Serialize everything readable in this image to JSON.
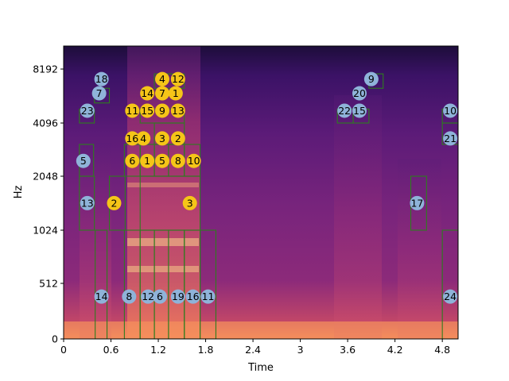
{
  "chart_data": {
    "type": "heatmap",
    "subtype": "spectrogram",
    "xlabel": "Time",
    "ylabel": "Hz",
    "xlim": [
      0,
      5.0
    ],
    "x_ticks": [
      0,
      0.6,
      1.2,
      1.8,
      2.4,
      3.0,
      3.6,
      4.2,
      4.8
    ],
    "x_tick_labels": [
      "0",
      "0.6",
      "1.2",
      "1.8",
      "2.4",
      "3",
      "3.6",
      "4.2",
      "4.8"
    ],
    "y_scale": "log2-like",
    "y_ticks": [
      0,
      512,
      1024,
      2048,
      4096,
      8192
    ],
    "y_tick_labels": [
      "0",
      "512",
      "1024",
      "2048",
      "4096",
      "8192"
    ],
    "colormap": "magma",
    "box_color": "#2e7d1e",
    "series": [
      {
        "color": "#f5c518",
        "points": [
          {
            "label": "1",
            "t": 1.06,
            "hz": 2500
          },
          {
            "label": "1",
            "t": 1.42,
            "hz": 6000
          },
          {
            "label": "2",
            "t": 0.64,
            "hz": 1450
          },
          {
            "label": "2",
            "t": 1.45,
            "hz": 3350
          },
          {
            "label": "3",
            "t": 1.6,
            "hz": 1450
          },
          {
            "label": "3",
            "t": 1.25,
            "hz": 3350
          },
          {
            "label": "4",
            "t": 1.01,
            "hz": 3350
          },
          {
            "label": "4",
            "t": 1.25,
            "hz": 7200
          },
          {
            "label": "5",
            "t": 1.25,
            "hz": 2500
          },
          {
            "label": "6",
            "t": 0.87,
            "hz": 2500
          },
          {
            "label": "7",
            "t": 1.25,
            "hz": 6000
          },
          {
            "label": "8",
            "t": 1.45,
            "hz": 2500
          },
          {
            "label": "9",
            "t": 1.25,
            "hz": 4800
          },
          {
            "label": "10",
            "t": 1.65,
            "hz": 2500
          },
          {
            "label": "11",
            "t": 0.87,
            "hz": 4800
          },
          {
            "label": "12",
            "t": 1.45,
            "hz": 7200
          },
          {
            "label": "13",
            "t": 1.45,
            "hz": 4800
          },
          {
            "label": "14",
            "t": 1.06,
            "hz": 6000
          },
          {
            "label": "15",
            "t": 1.06,
            "hz": 4800
          },
          {
            "label": "16",
            "t": 0.87,
            "hz": 3350
          }
        ]
      },
      {
        "color": "#8fb3d9",
        "points": [
          {
            "label": "5",
            "t": 0.25,
            "hz": 2500
          },
          {
            "label": "6",
            "t": 1.22,
            "hz": 390
          },
          {
            "label": "7",
            "t": 0.45,
            "hz": 6000
          },
          {
            "label": "8",
            "t": 0.83,
            "hz": 390
          },
          {
            "label": "9",
            "t": 3.9,
            "hz": 7200
          },
          {
            "label": "10",
            "t": 4.9,
            "hz": 4800
          },
          {
            "label": "11",
            "t": 1.83,
            "hz": 390
          },
          {
            "label": "12",
            "t": 1.07,
            "hz": 390
          },
          {
            "label": "13",
            "t": 0.3,
            "hz": 1450
          },
          {
            "label": "14",
            "t": 0.48,
            "hz": 390
          },
          {
            "label": "15",
            "t": 3.75,
            "hz": 4800
          },
          {
            "label": "16",
            "t": 1.64,
            "hz": 390
          },
          {
            "label": "17",
            "t": 4.48,
            "hz": 1450
          },
          {
            "label": "18",
            "t": 0.48,
            "hz": 7200
          },
          {
            "label": "19",
            "t": 1.45,
            "hz": 390
          },
          {
            "label": "20",
            "t": 3.75,
            "hz": 6000
          },
          {
            "label": "21",
            "t": 4.9,
            "hz": 3350
          },
          {
            "label": "22",
            "t": 3.56,
            "hz": 4800
          },
          {
            "label": "23",
            "t": 0.3,
            "hz": 4800
          },
          {
            "label": "24",
            "t": 4.9,
            "hz": 390
          }
        ]
      }
    ],
    "boxes": [
      {
        "t0": 0.2,
        "t1": 0.38,
        "hz0": 2048,
        "hz1": 3100
      },
      {
        "t0": 0.2,
        "t1": 0.39,
        "hz0": 1024,
        "hz1": 2048
      },
      {
        "t0": 0.2,
        "t1": 0.39,
        "hz0": 4096,
        "hz1": 4900
      },
      {
        "t0": 0.39,
        "t1": 0.58,
        "hz0": 5300,
        "hz1": 6400
      },
      {
        "t0": 0.4,
        "t1": 0.55,
        "hz0": 0,
        "hz1": 1024
      },
      {
        "t0": 0.58,
        "t1": 0.78,
        "hz0": 1024,
        "hz1": 2048
      },
      {
        "t0": 0.77,
        "t1": 0.97,
        "hz0": 0,
        "hz1": 1024
      },
      {
        "t0": 0.77,
        "t1": 0.97,
        "hz0": 2048,
        "hz1": 3100
      },
      {
        "t0": 0.97,
        "t1": 1.15,
        "hz0": 0,
        "hz1": 1024
      },
      {
        "t0": 1.15,
        "t1": 1.33,
        "hz0": 0,
        "hz1": 1024
      },
      {
        "t0": 1.33,
        "t1": 1.53,
        "hz0": 0,
        "hz1": 1024
      },
      {
        "t0": 1.53,
        "t1": 1.73,
        "hz0": 0,
        "hz1": 1024
      },
      {
        "t0": 1.73,
        "t1": 1.93,
        "hz0": 0,
        "hz1": 1024
      },
      {
        "t0": 0.97,
        "t1": 1.73,
        "hz0": 1024,
        "hz1": 2048
      },
      {
        "t0": 0.97,
        "t1": 1.15,
        "hz0": 2048,
        "hz1": 3100
      },
      {
        "t0": 1.15,
        "t1": 1.33,
        "hz0": 2048,
        "hz1": 3100
      },
      {
        "t0": 1.33,
        "t1": 1.53,
        "hz0": 2048,
        "hz1": 3100
      },
      {
        "t0": 1.53,
        "t1": 1.73,
        "hz0": 2048,
        "hz1": 3100
      },
      {
        "t0": 1.15,
        "t1": 1.53,
        "hz0": 3100,
        "hz1": 4096
      },
      {
        "t0": 0.97,
        "t1": 1.53,
        "hz0": 4096,
        "hz1": 4900
      },
      {
        "t0": 1.15,
        "t1": 1.53,
        "hz0": 6400,
        "hz1": 7700
      },
      {
        "t0": 3.47,
        "t1": 3.67,
        "hz0": 4096,
        "hz1": 4900
      },
      {
        "t0": 3.67,
        "t1": 3.87,
        "hz0": 4096,
        "hz1": 4900
      },
      {
        "t0": 3.87,
        "t1": 4.05,
        "hz0": 6400,
        "hz1": 7700
      },
      {
        "t0": 4.4,
        "t1": 4.6,
        "hz0": 1024,
        "hz1": 2048
      },
      {
        "t0": 4.8,
        "t1": 5.0,
        "hz0": 3100,
        "hz1": 4096
      },
      {
        "t0": 4.8,
        "t1": 5.0,
        "hz0": 4096,
        "hz1": 4900
      },
      {
        "t0": 4.8,
        "t1": 5.0,
        "hz0": 0,
        "hz1": 1024
      }
    ]
  }
}
